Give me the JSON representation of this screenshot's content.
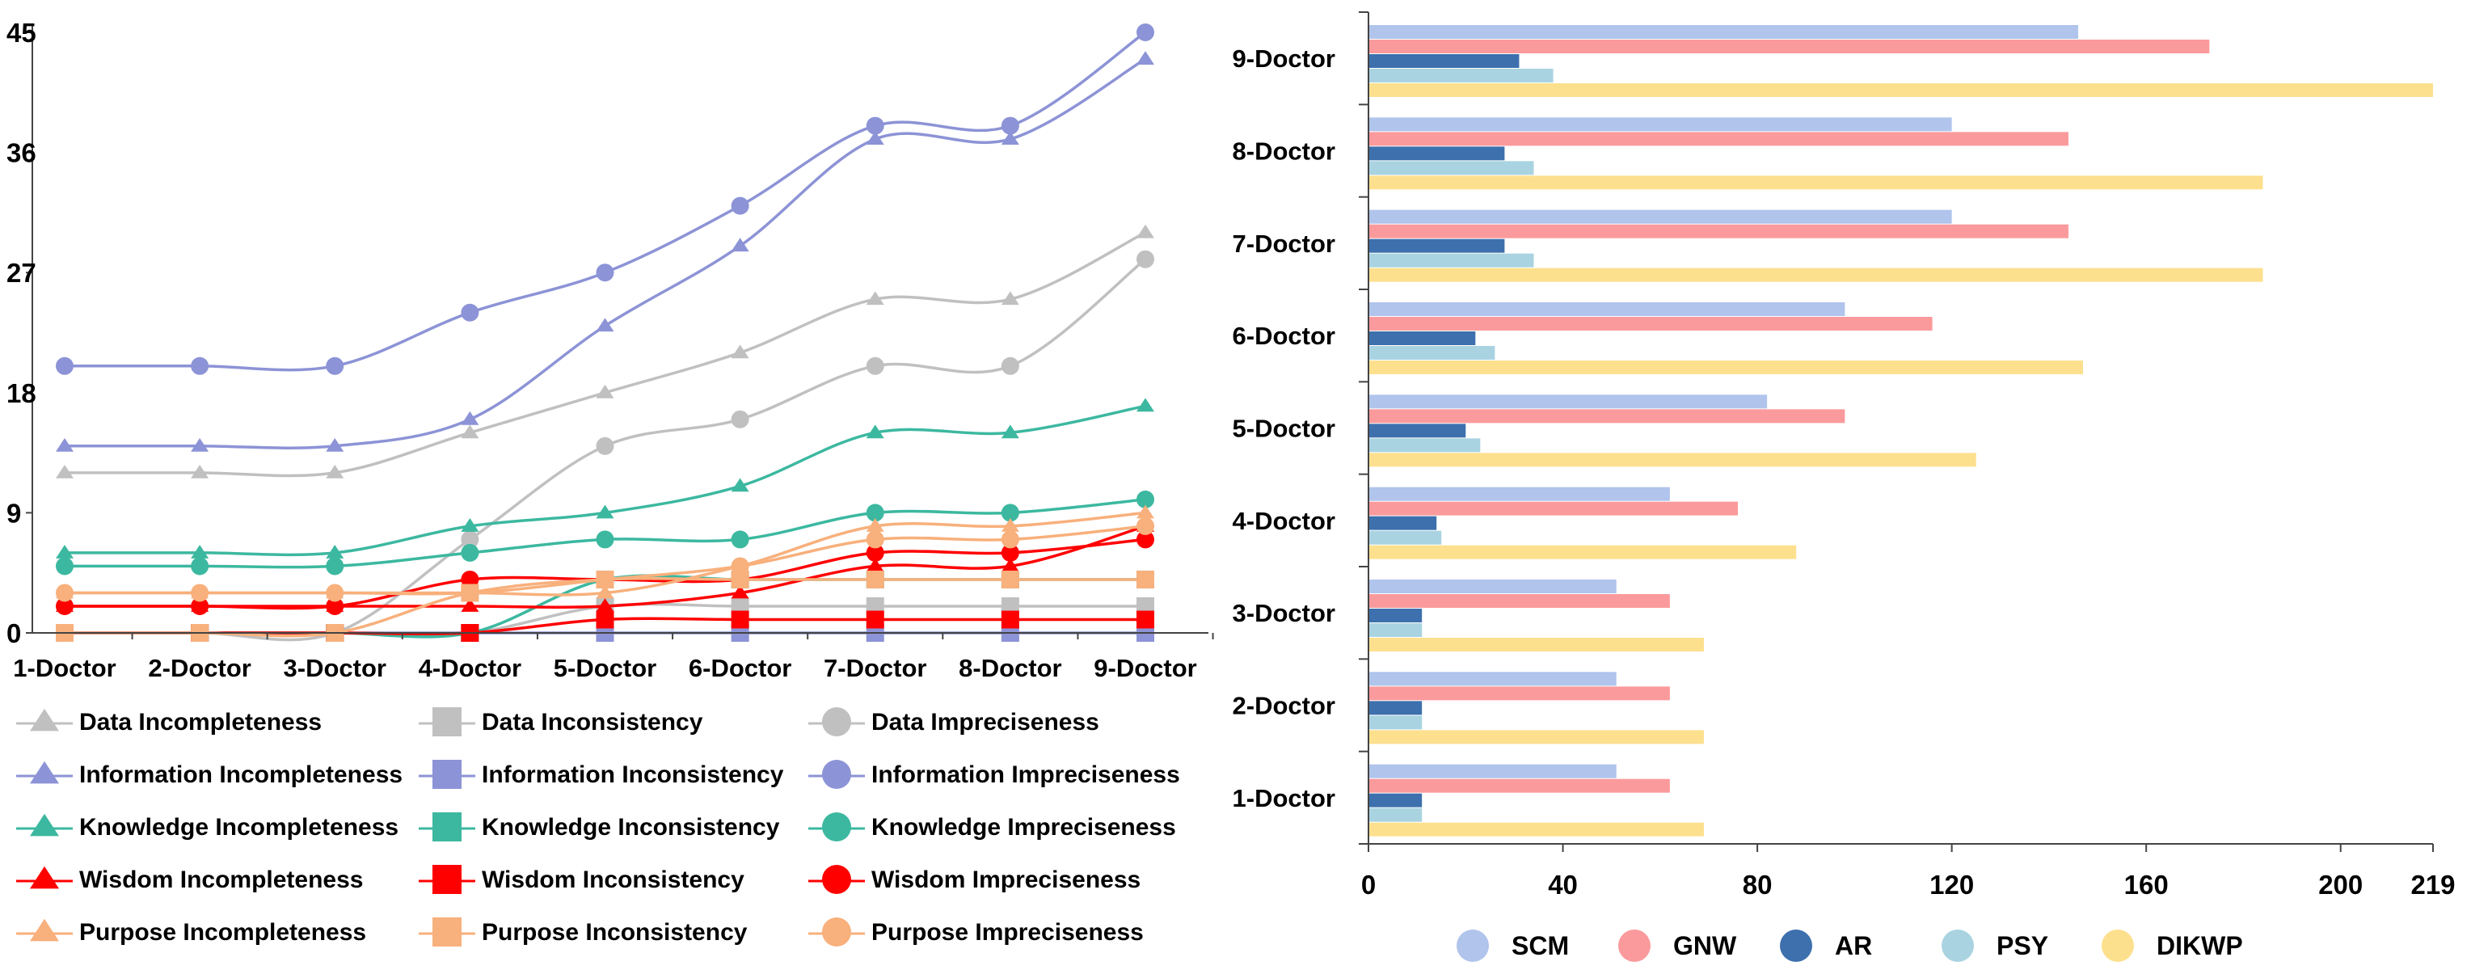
{
  "chart_data": [
    {
      "type": "line",
      "title": "",
      "xlabel": "",
      "ylabel": "",
      "ylim": [
        0,
        45
      ],
      "yticks": [
        "0",
        "9",
        "18",
        "27",
        "36",
        "45"
      ],
      "categories": [
        "1-Doctor",
        "2-Doctor",
        "3-Doctor",
        "4-Doctor",
        "5-Doctor",
        "6-Doctor",
        "7-Doctor",
        "8-Doctor",
        "9-Doctor"
      ],
      "legend_placement": "bottom",
      "series": [
        {
          "name": "Data Incompleteness",
          "color": "#c0c0c0",
          "marker": "triangle",
          "values": [
            12,
            12,
            12,
            15,
            18,
            21,
            25,
            25,
            30
          ]
        },
        {
          "name": "Data Inconsistency",
          "color": "#c0c0c0",
          "marker": "square",
          "values": [
            0,
            0,
            0,
            0,
            2,
            2,
            2,
            2,
            2
          ]
        },
        {
          "name": "Data Impreciseness",
          "color": "#c0c0c0",
          "marker": "circle",
          "values": [
            0,
            0,
            0,
            7,
            14,
            16,
            20,
            20,
            28
          ]
        },
        {
          "name": "Information Incompleteness",
          "color": "#8c93d6",
          "marker": "triangle",
          "values": [
            14,
            14,
            14,
            16,
            23,
            29,
            37,
            37,
            43
          ]
        },
        {
          "name": "Information Inconsistency",
          "color": "#8c93d6",
          "marker": "square",
          "values": [
            0,
            0,
            0,
            0,
            0,
            0,
            0,
            0,
            0
          ]
        },
        {
          "name": "Information Impreciseness",
          "color": "#8c93d6",
          "marker": "circle",
          "values": [
            20,
            20,
            20,
            24,
            27,
            32,
            38,
            38,
            45
          ]
        },
        {
          "name": "Knowledge Incompleteness",
          "color": "#3cb8a0",
          "marker": "triangle",
          "values": [
            6,
            6,
            6,
            8,
            9,
            11,
            15,
            15,
            17
          ]
        },
        {
          "name": "Knowledge Inconsistency",
          "color": "#3cb8a0",
          "marker": "square",
          "values": [
            0,
            0,
            0,
            0,
            4,
            4,
            4,
            4,
            4
          ]
        },
        {
          "name": "Knowledge Impreciseness",
          "color": "#3cb8a0",
          "marker": "circle",
          "values": [
            5,
            5,
            5,
            6,
            7,
            7,
            9,
            9,
            10
          ]
        },
        {
          "name": "Wisdom Incompleteness",
          "color": "#ff0000",
          "marker": "triangle",
          "values": [
            2,
            2,
            2,
            2,
            2,
            3,
            5,
            5,
            8
          ]
        },
        {
          "name": "Wisdom Inconsistency",
          "color": "#ff0000",
          "marker": "square",
          "values": [
            0,
            0,
            0,
            0,
            1,
            1,
            1,
            1,
            1
          ]
        },
        {
          "name": "Wisdom Impreciseness",
          "color": "#ff0000",
          "marker": "circle",
          "values": [
            2,
            2,
            2,
            4,
            4,
            4,
            6,
            6,
            7
          ]
        },
        {
          "name": "Purpose Incompleteness",
          "color": "#f8b07c",
          "marker": "triangle",
          "values": [
            3,
            3,
            3,
            3,
            3,
            5,
            8,
            8,
            9
          ]
        },
        {
          "name": "Purpose Inconsistency",
          "color": "#f8b07c",
          "marker": "square",
          "values": [
            0,
            0,
            0,
            3,
            4,
            4,
            4,
            4,
            4
          ]
        },
        {
          "name": "Purpose Impreciseness",
          "color": "#f8b07c",
          "marker": "circle",
          "values": [
            3,
            3,
            3,
            3,
            4,
            5,
            7,
            7,
            8
          ]
        }
      ]
    },
    {
      "type": "bar",
      "orientation": "horizontal",
      "title": "",
      "xlabel": "",
      "ylabel": "",
      "xlim": [
        0,
        219
      ],
      "xticks": [
        "0",
        "40",
        "80",
        "120",
        "160",
        "200",
        "219"
      ],
      "categories": [
        "1-Doctor",
        "2-Doctor",
        "3-Doctor",
        "4-Doctor",
        "5-Doctor",
        "6-Doctor",
        "7-Doctor",
        "8-Doctor",
        "9-Doctor"
      ],
      "legend_placement": "bottom",
      "series": [
        {
          "name": "SCM",
          "color": "#b0c4ec",
          "values": [
            51,
            51,
            51,
            62,
            82,
            98,
            120,
            120,
            146
          ]
        },
        {
          "name": "GNW",
          "color": "#fb9a9c",
          "values": [
            62,
            62,
            62,
            76,
            98,
            116,
            144,
            144,
            173
          ]
        },
        {
          "name": "AR",
          "color": "#3d70ad",
          "values": [
            11,
            11,
            11,
            14,
            20,
            22,
            28,
            28,
            31
          ]
        },
        {
          "name": "PSY",
          "color": "#a9d3e1",
          "values": [
            11,
            11,
            11,
            15,
            23,
            26,
            34,
            34,
            38
          ]
        },
        {
          "name": "DIKWP",
          "color": "#fde08e",
          "values": [
            69,
            69,
            69,
            88,
            125,
            147,
            184,
            184,
            219
          ]
        }
      ]
    }
  ]
}
